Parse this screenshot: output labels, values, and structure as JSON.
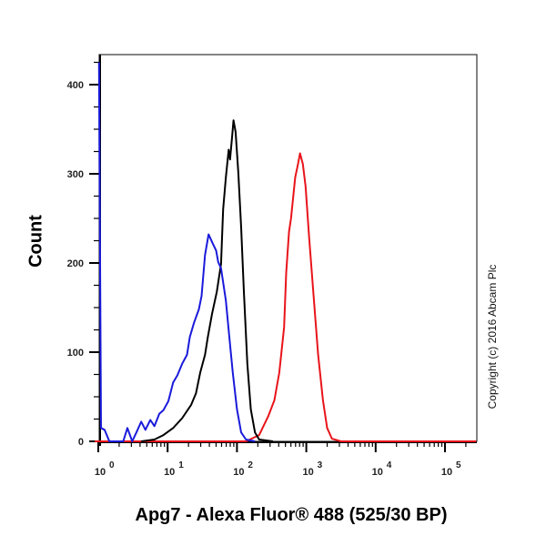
{
  "chart_data": {
    "type": "line",
    "title": "",
    "xlabel": "Apg7 - Alexa Fluor® 488 (525/30 BP)",
    "ylabel": "Count",
    "xscale": "log",
    "xlim_log10": [
      -0.05,
      5.45
    ],
    "ylim": [
      0,
      430
    ],
    "y_ticks": [
      0,
      100,
      200,
      300,
      400
    ],
    "y_minor_step": 25,
    "x_tick_labels": [
      {
        "base": "10",
        "exp": "0",
        "log10": 0
      },
      {
        "base": "10",
        "exp": "1",
        "log10": 1
      },
      {
        "base": "10",
        "exp": "2",
        "log10": 2
      },
      {
        "base": "10",
        "exp": "3",
        "log10": 3
      },
      {
        "base": "10",
        "exp": "4",
        "log10": 4
      },
      {
        "base": "10",
        "exp": "5",
        "log10": 5
      }
    ],
    "grid": false,
    "legend": null,
    "annotation": "Copyright (c) 2016 Abcam Plc",
    "series": [
      {
        "name": "blue",
        "color": "#1a1adb",
        "points_log10x_count": [
          [
            0.01,
            425
          ],
          [
            0.04,
            15
          ],
          [
            0.09,
            13
          ],
          [
            0.16,
            0
          ],
          [
            0.36,
            0
          ],
          [
            0.42,
            15
          ],
          [
            0.49,
            0
          ],
          [
            0.55,
            10
          ],
          [
            0.62,
            22
          ],
          [
            0.68,
            13
          ],
          [
            0.75,
            24
          ],
          [
            0.81,
            17
          ],
          [
            0.88,
            31
          ],
          [
            0.94,
            35
          ],
          [
            1.01,
            45
          ],
          [
            1.08,
            66
          ],
          [
            1.14,
            74
          ],
          [
            1.21,
            87
          ],
          [
            1.28,
            97
          ],
          [
            1.32,
            117
          ],
          [
            1.38,
            133
          ],
          [
            1.45,
            148
          ],
          [
            1.49,
            163
          ],
          [
            1.54,
            209
          ],
          [
            1.59,
            232
          ],
          [
            1.65,
            222
          ],
          [
            1.7,
            214
          ],
          [
            1.73,
            201
          ],
          [
            1.77,
            194
          ],
          [
            1.84,
            158
          ],
          [
            1.89,
            117
          ],
          [
            1.94,
            77
          ],
          [
            2.0,
            36
          ],
          [
            2.06,
            10
          ],
          [
            2.13,
            2
          ],
          [
            2.26,
            0
          ]
        ]
      },
      {
        "name": "black",
        "color": "#000000",
        "points_log10x_count": [
          [
            0.62,
            0
          ],
          [
            0.81,
            2
          ],
          [
            0.94,
            7
          ],
          [
            1.08,
            15
          ],
          [
            1.21,
            26
          ],
          [
            1.34,
            41
          ],
          [
            1.41,
            54
          ],
          [
            1.47,
            77
          ],
          [
            1.54,
            97
          ],
          [
            1.58,
            117
          ],
          [
            1.64,
            143
          ],
          [
            1.71,
            168
          ],
          [
            1.77,
            199
          ],
          [
            1.8,
            260
          ],
          [
            1.84,
            296
          ],
          [
            1.86,
            311
          ],
          [
            1.88,
            327
          ],
          [
            1.9,
            316
          ],
          [
            1.93,
            342
          ],
          [
            1.95,
            360
          ],
          [
            1.98,
            347
          ],
          [
            2.02,
            301
          ],
          [
            2.06,
            240
          ],
          [
            2.1,
            168
          ],
          [
            2.15,
            87
          ],
          [
            2.2,
            36
          ],
          [
            2.26,
            10
          ],
          [
            2.32,
            2
          ],
          [
            2.52,
            0
          ]
        ]
      },
      {
        "name": "red",
        "color": "#e8141a",
        "points_log10x_count": [
          [
            -0.05,
            0
          ],
          [
            2.13,
            0
          ],
          [
            2.32,
            7
          ],
          [
            2.45,
            28
          ],
          [
            2.54,
            46
          ],
          [
            2.61,
            77
          ],
          [
            2.68,
            128
          ],
          [
            2.71,
            189
          ],
          [
            2.75,
            235
          ],
          [
            2.78,
            250
          ],
          [
            2.82,
            281
          ],
          [
            2.84,
            296
          ],
          [
            2.88,
            311
          ],
          [
            2.91,
            323
          ],
          [
            2.95,
            311
          ],
          [
            2.99,
            286
          ],
          [
            3.04,
            230
          ],
          [
            3.11,
            158
          ],
          [
            3.17,
            97
          ],
          [
            3.24,
            46
          ],
          [
            3.3,
            15
          ],
          [
            3.37,
            3
          ],
          [
            3.5,
            0
          ],
          [
            5.45,
            0
          ]
        ]
      }
    ]
  },
  "labels": {
    "y_axis": "Count",
    "x_axis": "Apg7 - Alexa Fluor® 488 (525/30 BP)",
    "copyright": "Copyright (c) 2016 Abcam Plc"
  }
}
